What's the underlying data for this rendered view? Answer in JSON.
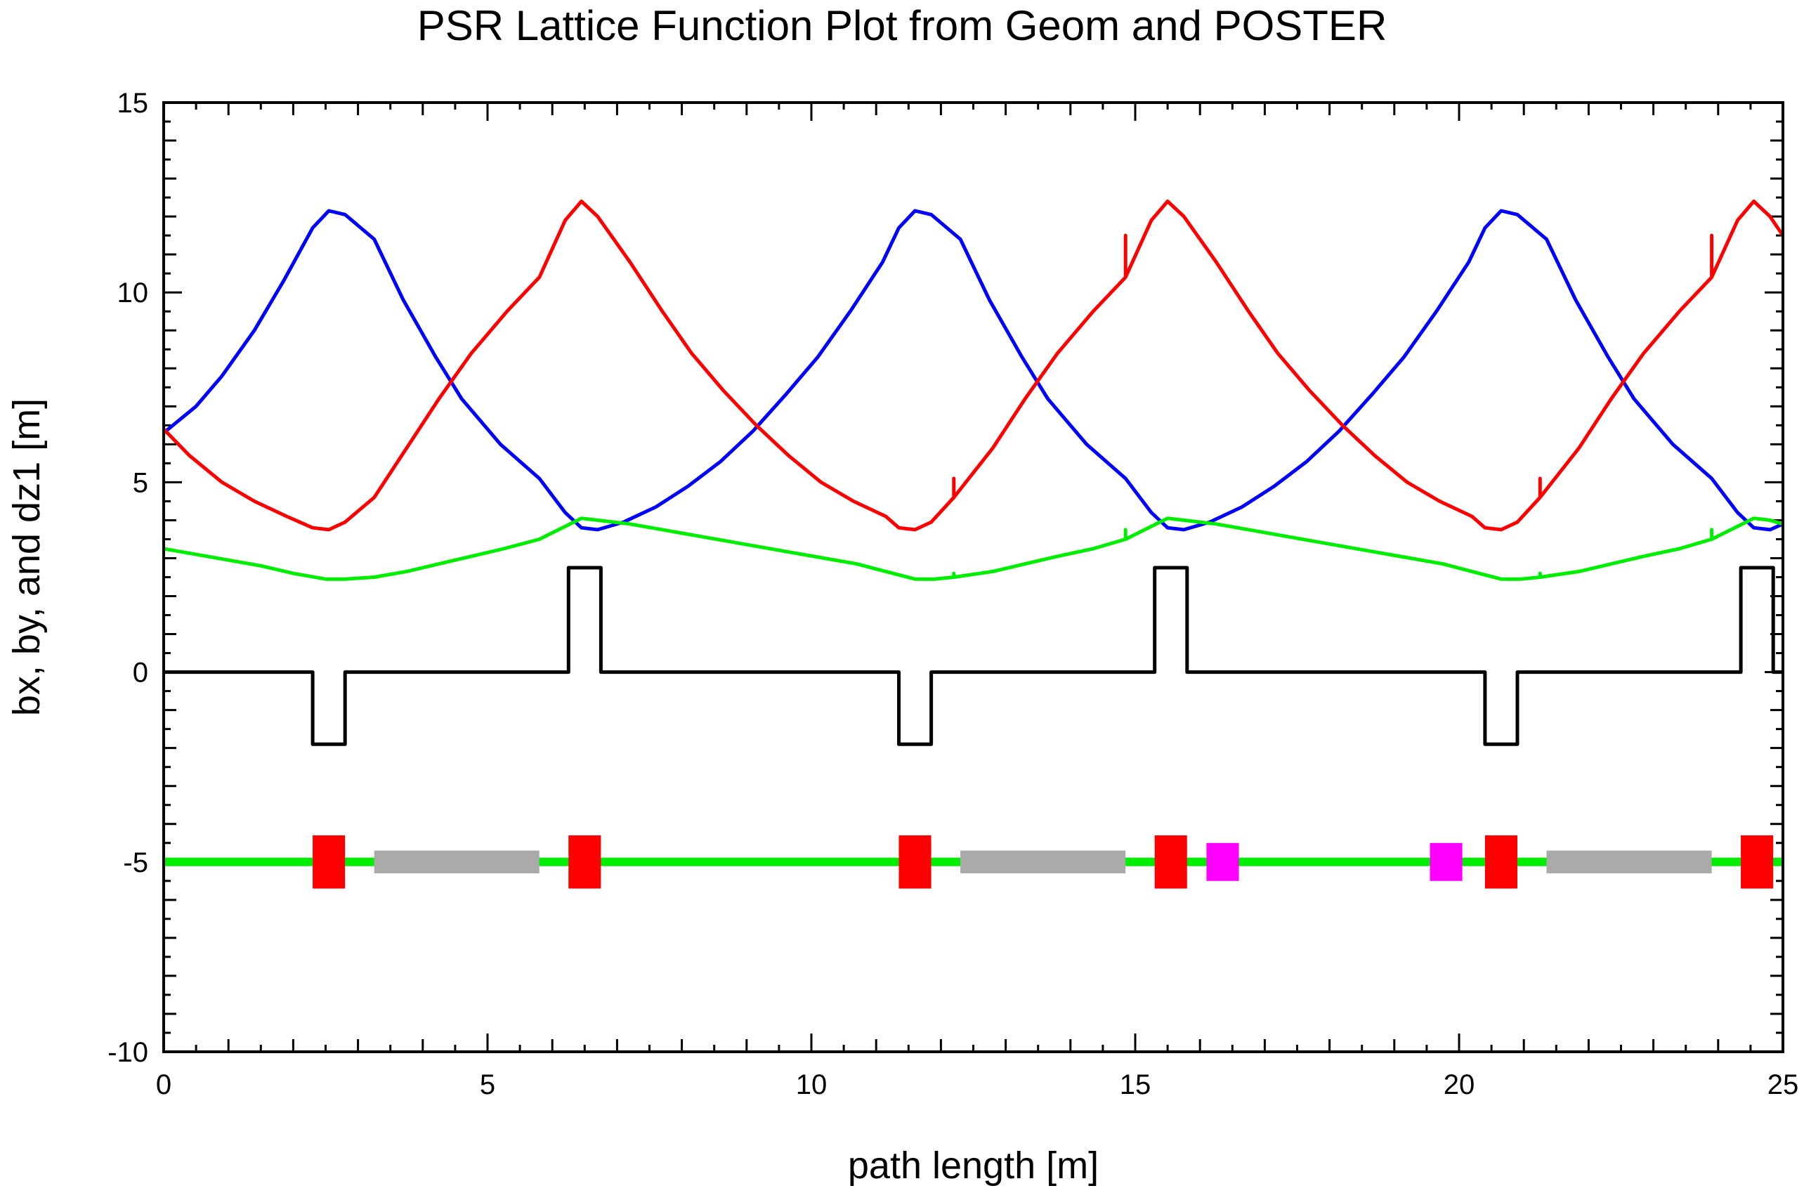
{
  "chart_data": {
    "type": "line",
    "title": "PSR Lattice Function Plot from Geom and POSTER",
    "xlabel": "path length [m]",
    "ylabel": "bx, by, and dz1 [m]",
    "xlim": [
      0,
      25
    ],
    "ylim": [
      -10,
      15
    ],
    "x_ticks": [
      "0",
      "5",
      "10",
      "15",
      "20",
      "25"
    ],
    "y_ticks": [
      "-10",
      "-5",
      "0",
      "5",
      "10",
      "15"
    ],
    "grid": false,
    "legend": "none",
    "series": [
      {
        "color": "#0000ff",
        "points": [
          [
            0,
            6.3
          ],
          [
            0.5,
            7.0
          ],
          [
            0.9,
            7.8
          ],
          [
            1.4,
            9.0
          ],
          [
            1.85,
            10.3
          ],
          [
            2.3,
            11.7
          ],
          [
            2.55,
            12.15
          ],
          [
            2.8,
            12.05
          ],
          [
            3.25,
            11.4
          ],
          [
            3.7,
            9.8
          ],
          [
            4.2,
            8.3
          ],
          [
            4.6,
            7.2
          ],
          [
            5.2,
            6.0
          ],
          [
            5.8,
            5.1
          ],
          [
            6.2,
            4.2
          ],
          [
            6.45,
            3.8
          ],
          [
            6.7,
            3.75
          ],
          [
            7.1,
            3.95
          ],
          [
            7.6,
            4.35
          ],
          [
            8.1,
            4.9
          ],
          [
            8.6,
            5.55
          ],
          [
            9.1,
            6.35
          ],
          [
            9.6,
            7.3
          ],
          [
            10.1,
            8.3
          ],
          [
            10.6,
            9.5
          ],
          [
            11.1,
            10.8
          ],
          [
            11.35,
            11.7
          ],
          [
            11.6,
            12.15
          ],
          [
            11.85,
            12.05
          ],
          [
            12.3,
            11.4
          ],
          [
            12.75,
            9.8
          ],
          [
            13.25,
            8.3
          ],
          [
            13.65,
            7.2
          ],
          [
            14.25,
            6.0
          ],
          [
            14.85,
            5.1
          ],
          [
            15.25,
            4.2
          ],
          [
            15.5,
            3.8
          ],
          [
            15.75,
            3.75
          ],
          [
            16.15,
            3.95
          ],
          [
            16.65,
            4.35
          ],
          [
            17.15,
            4.9
          ],
          [
            17.65,
            5.55
          ],
          [
            18.15,
            6.35
          ],
          [
            18.65,
            7.3
          ],
          [
            19.15,
            8.3
          ],
          [
            19.65,
            9.5
          ],
          [
            20.15,
            10.8
          ],
          [
            20.4,
            11.7
          ],
          [
            20.65,
            12.15
          ],
          [
            20.9,
            12.05
          ],
          [
            21.35,
            11.4
          ],
          [
            21.8,
            9.8
          ],
          [
            22.3,
            8.3
          ],
          [
            22.7,
            7.2
          ],
          [
            23.3,
            6.0
          ],
          [
            23.9,
            5.1
          ],
          [
            24.3,
            4.2
          ],
          [
            24.55,
            3.8
          ],
          [
            24.8,
            3.75
          ],
          [
            25,
            3.9
          ]
        ]
      },
      {
        "color": "#ff0000",
        "points": [
          [
            0,
            6.4
          ],
          [
            0.4,
            5.7
          ],
          [
            0.9,
            5.0
          ],
          [
            1.4,
            4.5
          ],
          [
            1.9,
            4.1
          ],
          [
            2.3,
            3.8
          ],
          [
            2.55,
            3.75
          ],
          [
            2.8,
            3.95
          ],
          [
            3.25,
            4.6
          ],
          [
            3.75,
            5.9
          ],
          [
            4.25,
            7.2
          ],
          [
            4.75,
            8.4
          ],
          [
            5.3,
            9.5
          ],
          [
            5.8,
            10.4
          ],
          [
            6.2,
            11.9
          ],
          [
            6.45,
            12.4
          ],
          [
            6.7,
            12.0
          ],
          [
            7.2,
            10.8
          ],
          [
            7.7,
            9.5
          ],
          [
            8.15,
            8.4
          ],
          [
            8.65,
            7.4
          ],
          [
            9.15,
            6.5
          ],
          [
            9.65,
            5.7
          ],
          [
            10.15,
            5.0
          ],
          [
            10.65,
            4.5
          ],
          [
            11.15,
            4.1
          ],
          [
            11.35,
            3.8
          ],
          [
            11.6,
            3.75
          ],
          [
            11.85,
            3.95
          ],
          [
            12.2,
            4.6
          ],
          [
            12.2,
            5.1
          ],
          [
            12.2,
            4.6
          ],
          [
            12.8,
            5.9
          ],
          [
            13.3,
            7.2
          ],
          [
            13.8,
            8.4
          ],
          [
            14.35,
            9.5
          ],
          [
            14.85,
            10.4
          ],
          [
            14.85,
            11.5
          ],
          [
            14.85,
            10.4
          ],
          [
            15.25,
            11.9
          ],
          [
            15.5,
            12.4
          ],
          [
            15.75,
            12.0
          ],
          [
            16.25,
            10.8
          ],
          [
            16.75,
            9.5
          ],
          [
            17.2,
            8.4
          ],
          [
            17.7,
            7.4
          ],
          [
            18.2,
            6.5
          ],
          [
            18.7,
            5.7
          ],
          [
            19.2,
            5.0
          ],
          [
            19.7,
            4.5
          ],
          [
            20.2,
            4.1
          ],
          [
            20.4,
            3.8
          ],
          [
            20.65,
            3.75
          ],
          [
            20.9,
            3.95
          ],
          [
            21.25,
            4.6
          ],
          [
            21.25,
            5.1
          ],
          [
            21.25,
            4.6
          ],
          [
            21.85,
            5.9
          ],
          [
            22.35,
            7.2
          ],
          [
            22.85,
            8.4
          ],
          [
            23.4,
            9.5
          ],
          [
            23.9,
            10.4
          ],
          [
            23.9,
            11.5
          ],
          [
            23.9,
            10.4
          ],
          [
            24.3,
            11.9
          ],
          [
            24.55,
            12.4
          ],
          [
            24.8,
            12.0
          ],
          [
            25,
            11.5
          ]
        ]
      },
      {
        "color": "#00ee00",
        "points": [
          [
            0,
            3.25
          ],
          [
            0.5,
            3.1
          ],
          [
            1.0,
            2.95
          ],
          [
            1.5,
            2.8
          ],
          [
            2.0,
            2.6
          ],
          [
            2.5,
            2.45
          ],
          [
            2.8,
            2.45
          ],
          [
            3.25,
            2.5
          ],
          [
            3.75,
            2.65
          ],
          [
            4.25,
            2.85
          ],
          [
            4.75,
            3.05
          ],
          [
            5.25,
            3.25
          ],
          [
            5.8,
            3.5
          ],
          [
            6.45,
            4.05
          ],
          [
            6.7,
            4.0
          ],
          [
            7.2,
            3.9
          ],
          [
            7.7,
            3.75
          ],
          [
            8.2,
            3.6
          ],
          [
            8.7,
            3.45
          ],
          [
            9.2,
            3.3
          ],
          [
            9.7,
            3.15
          ],
          [
            10.2,
            3.0
          ],
          [
            10.7,
            2.85
          ],
          [
            11.15,
            2.65
          ],
          [
            11.6,
            2.45
          ],
          [
            11.9,
            2.45
          ],
          [
            12.2,
            2.5
          ],
          [
            12.2,
            2.6
          ],
          [
            12.2,
            2.5
          ],
          [
            12.8,
            2.65
          ],
          [
            13.3,
            2.85
          ],
          [
            13.8,
            3.05
          ],
          [
            14.35,
            3.25
          ],
          [
            14.85,
            3.5
          ],
          [
            14.85,
            3.75
          ],
          [
            14.85,
            3.5
          ],
          [
            15.5,
            4.05
          ],
          [
            15.75,
            4.0
          ],
          [
            16.25,
            3.9
          ],
          [
            16.75,
            3.75
          ],
          [
            17.25,
            3.6
          ],
          [
            17.75,
            3.45
          ],
          [
            18.25,
            3.3
          ],
          [
            18.75,
            3.15
          ],
          [
            19.25,
            3.0
          ],
          [
            19.75,
            2.85
          ],
          [
            20.2,
            2.65
          ],
          [
            20.65,
            2.45
          ],
          [
            20.95,
            2.45
          ],
          [
            21.25,
            2.5
          ],
          [
            21.25,
            2.6
          ],
          [
            21.25,
            2.5
          ],
          [
            21.85,
            2.65
          ],
          [
            22.35,
            2.85
          ],
          [
            22.85,
            3.05
          ],
          [
            23.4,
            3.25
          ],
          [
            23.9,
            3.5
          ],
          [
            23.9,
            3.75
          ],
          [
            23.9,
            3.5
          ],
          [
            24.55,
            4.05
          ],
          [
            24.8,
            4.0
          ],
          [
            25,
            3.9
          ]
        ]
      },
      {
        "color": "#000000",
        "points": [
          [
            0,
            0
          ],
          [
            2.3,
            0
          ],
          [
            2.3,
            -1.9
          ],
          [
            2.8,
            -1.9
          ],
          [
            2.8,
            0
          ],
          [
            6.25,
            0
          ],
          [
            6.25,
            2.75
          ],
          [
            6.75,
            2.75
          ],
          [
            6.75,
            0
          ],
          [
            11.35,
            0
          ],
          [
            11.35,
            -1.9
          ],
          [
            11.85,
            -1.9
          ],
          [
            11.85,
            0
          ],
          [
            15.3,
            0
          ],
          [
            15.3,
            2.75
          ],
          [
            15.8,
            2.75
          ],
          [
            15.8,
            0
          ],
          [
            20.4,
            0
          ],
          [
            20.4,
            -1.9
          ],
          [
            20.9,
            -1.9
          ],
          [
            20.9,
            0
          ],
          [
            24.35,
            0
          ],
          [
            24.35,
            2.75
          ],
          [
            24.85,
            2.75
          ],
          [
            24.85,
            0
          ],
          [
            25,
            0
          ]
        ]
      }
    ],
    "layout_line": {
      "y": -5,
      "color": "#00ee00"
    },
    "elements": [
      {
        "x0": 2.3,
        "x1": 2.8,
        "y0": -5.7,
        "y1": -4.3,
        "color": "#ff0000"
      },
      {
        "x0": 3.25,
        "x1": 5.8,
        "y0": -5.3,
        "y1": -4.7,
        "color": "#aaaaaa"
      },
      {
        "x0": 6.25,
        "x1": 6.75,
        "y0": -5.7,
        "y1": -4.3,
        "color": "#ff0000"
      },
      {
        "x0": 11.35,
        "x1": 11.85,
        "y0": -5.7,
        "y1": -4.3,
        "color": "#ff0000"
      },
      {
        "x0": 12.3,
        "x1": 14.85,
        "y0": -5.3,
        "y1": -4.7,
        "color": "#aaaaaa"
      },
      {
        "x0": 15.3,
        "x1": 15.8,
        "y0": -5.7,
        "y1": -4.3,
        "color": "#ff0000"
      },
      {
        "x0": 16.1,
        "x1": 16.6,
        "y0": -5.5,
        "y1": -4.5,
        "color": "#ff00ff"
      },
      {
        "x0": 19.55,
        "x1": 20.05,
        "y0": -5.5,
        "y1": -4.5,
        "color": "#ff00ff"
      },
      {
        "x0": 20.4,
        "x1": 20.9,
        "y0": -5.7,
        "y1": -4.3,
        "color": "#ff0000"
      },
      {
        "x0": 21.35,
        "x1": 23.9,
        "y0": -5.3,
        "y1": -4.7,
        "color": "#aaaaaa"
      },
      {
        "x0": 24.35,
        "x1": 24.85,
        "y0": -5.7,
        "y1": -4.3,
        "color": "#ff0000"
      }
    ]
  }
}
